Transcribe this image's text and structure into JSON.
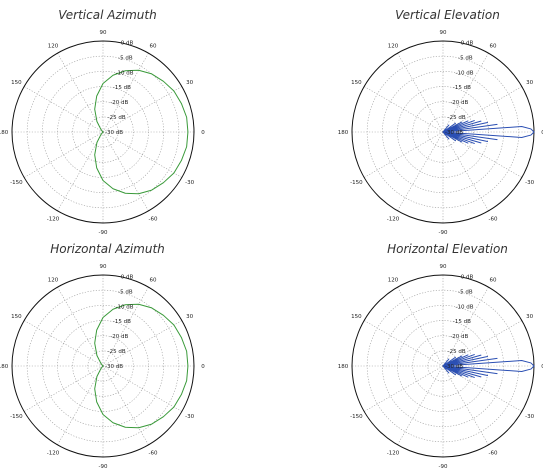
{
  "chart_data": [
    {
      "type": "polar-line",
      "title": "Vertical Azimuth",
      "color": "#3a9a3a",
      "angle_ticks": [
        "0",
        "30",
        "60",
        "90",
        "120",
        "150",
        "180",
        "-150",
        "-120",
        "-90",
        "-60",
        "-30"
      ],
      "radial_ticks": [
        "0 dB",
        "-5 dB",
        "-10 dB",
        "-15 dB",
        "-20 dB",
        "-25 dB",
        "-30 dB"
      ],
      "rlim": [
        -30,
        0
      ],
      "grid": true,
      "series": [
        {
          "theta": [
            0,
            10,
            20,
            30,
            40,
            50,
            60,
            70,
            80,
            90,
            100,
            110,
            120,
            130,
            140,
            150,
            160,
            170,
            180,
            -170,
            -160,
            -150,
            -140,
            -130,
            -120,
            -110,
            -100,
            -90,
            -80,
            -70,
            -60,
            -50,
            -40,
            -30,
            -20,
            -10
          ],
          "r": [
            -2,
            -2,
            -2.5,
            -3,
            -4,
            -5,
            -6.5,
            -8.5,
            -11,
            -14,
            -18,
            -22,
            -26,
            -29,
            -30,
            -30,
            -30,
            -30,
            -30,
            -30,
            -30,
            -30,
            -30,
            -29,
            -26,
            -22,
            -18,
            -14,
            -11,
            -8.5,
            -6.5,
            -5,
            -4,
            -3,
            -2.5,
            -2
          ]
        }
      ]
    },
    {
      "type": "polar-line",
      "title": "Vertical Elevation",
      "color": "#2b4fb3",
      "angle_ticks": [
        "0",
        "30",
        "60",
        "90",
        "120",
        "150",
        "180",
        "-150",
        "-120",
        "-90",
        "-60",
        "-30"
      ],
      "radial_ticks": [
        "0 dB",
        "-5 dB",
        "-10 dB",
        "-15 dB",
        "-20 dB",
        "-25 dB",
        "-30 dB"
      ],
      "rlim": [
        -30,
        0
      ],
      "grid": true,
      "series": [
        {
          "theta": [
            0,
            2,
            4,
            6,
            8,
            10,
            12,
            14,
            16,
            18,
            20,
            22,
            24,
            26,
            28,
            30,
            35,
            40,
            50,
            60,
            90,
            120,
            150,
            180,
            -150,
            -120,
            -90,
            -60,
            -50,
            -40,
            -35,
            -30,
            -28,
            -26,
            -24,
            -22,
            -20,
            -18,
            -16,
            -14,
            -12,
            -10,
            -8,
            -6,
            -4,
            -2
          ],
          "r": [
            0,
            -1,
            -4,
            -30,
            -12,
            -30,
            -15,
            -30,
            -17,
            -30,
            -19,
            -30,
            -21,
            -30,
            -23,
            -30,
            -25,
            -30,
            -27,
            -30,
            -30,
            -30,
            -30,
            -30,
            -30,
            -30,
            -30,
            -30,
            -27,
            -30,
            -25,
            -30,
            -23,
            -30,
            -21,
            -30,
            -19,
            -30,
            -17,
            -30,
            -15,
            -30,
            -12,
            -30,
            -4,
            -1
          ]
        }
      ]
    },
    {
      "type": "polar-line",
      "title": "Horizontal Azimuth",
      "color": "#3a9a3a",
      "angle_ticks": [
        "0",
        "30",
        "60",
        "90",
        "120",
        "150",
        "180",
        "-150",
        "-120",
        "-90",
        "-60",
        "-30"
      ],
      "radial_ticks": [
        "0 dB",
        "-5 dB",
        "-10 dB",
        "-15 dB",
        "-20 dB",
        "-25 dB",
        "-30 dB"
      ],
      "rlim": [
        -30,
        0
      ],
      "grid": true,
      "series": [
        {
          "theta": [
            0,
            10,
            20,
            30,
            40,
            50,
            60,
            70,
            80,
            90,
            100,
            110,
            120,
            130,
            140,
            150,
            160,
            170,
            180,
            -170,
            -160,
            -150,
            -140,
            -130,
            -120,
            -110,
            -100,
            -90,
            -80,
            -70,
            -60,
            -50,
            -40,
            -30,
            -20,
            -10
          ],
          "r": [
            -2,
            -2,
            -2.5,
            -3,
            -4,
            -5,
            -6.5,
            -8.5,
            -11,
            -14,
            -18,
            -22,
            -26,
            -29,
            -30,
            -30,
            -30,
            -30,
            -30,
            -30,
            -30,
            -30,
            -30,
            -29,
            -26,
            -22,
            -18,
            -14,
            -11,
            -8.5,
            -6.5,
            -5,
            -4,
            -3,
            -2.5,
            -2
          ]
        }
      ]
    },
    {
      "type": "polar-line",
      "title": "Horizontal Elevation",
      "color": "#2b4fb3",
      "angle_ticks": [
        "0",
        "30",
        "60",
        "90",
        "120",
        "150",
        "180",
        "-150",
        "-120",
        "-90",
        "-60",
        "-30"
      ],
      "radial_ticks": [
        "0 dB",
        "-5 dB",
        "-10 dB",
        "-15 dB",
        "-20 dB",
        "-25 dB",
        "-30 dB"
      ],
      "rlim": [
        -30,
        0
      ],
      "grid": true,
      "series": [
        {
          "theta": [
            0,
            2,
            4,
            6,
            8,
            10,
            12,
            14,
            16,
            18,
            20,
            22,
            24,
            26,
            28,
            30,
            35,
            40,
            50,
            60,
            90,
            120,
            150,
            180,
            -150,
            -120,
            -90,
            -60,
            -50,
            -40,
            -35,
            -30,
            -28,
            -26,
            -24,
            -22,
            -20,
            -18,
            -16,
            -14,
            -12,
            -10,
            -8,
            -6,
            -4,
            -2
          ],
          "r": [
            0,
            -1,
            -4,
            -30,
            -12,
            -30,
            -15,
            -30,
            -17,
            -30,
            -19,
            -30,
            -21,
            -30,
            -23,
            -30,
            -25,
            -30,
            -27,
            -30,
            -30,
            -30,
            -30,
            -30,
            -30,
            -30,
            -30,
            -30,
            -27,
            -30,
            -25,
            -30,
            -23,
            -30,
            -21,
            -30,
            -19,
            -30,
            -17,
            -30,
            -15,
            -30,
            -12,
            -30,
            -4,
            -1
          ]
        }
      ]
    }
  ]
}
